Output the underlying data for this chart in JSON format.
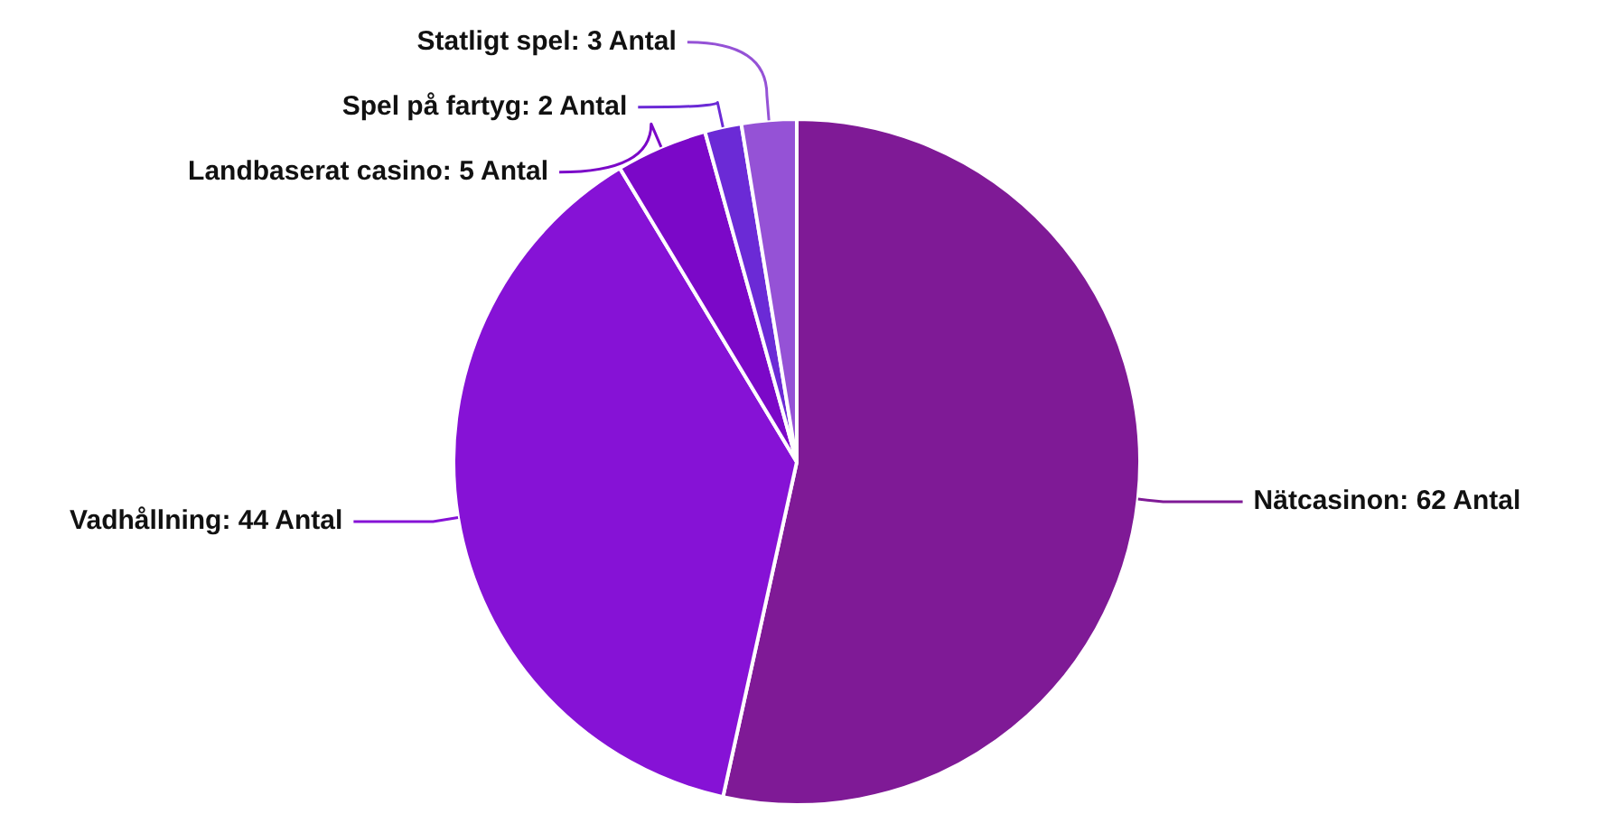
{
  "chart_data": {
    "type": "pie",
    "categories": [
      "Nätcasinon",
      "Vadhållning",
      "Landbaserat casino",
      "Spel på fartyg",
      "Statligt spel"
    ],
    "values": [
      62,
      44,
      5,
      2,
      3
    ],
    "colors": [
      "#7f1a96",
      "#8612d6",
      "#7b08c8",
      "#6b2ad6",
      "#9552d6"
    ],
    "value_labels": [
      "62 Antal",
      "44 Antal",
      "5 Antal",
      "2 Antal",
      "3 Antal"
    ]
  }
}
